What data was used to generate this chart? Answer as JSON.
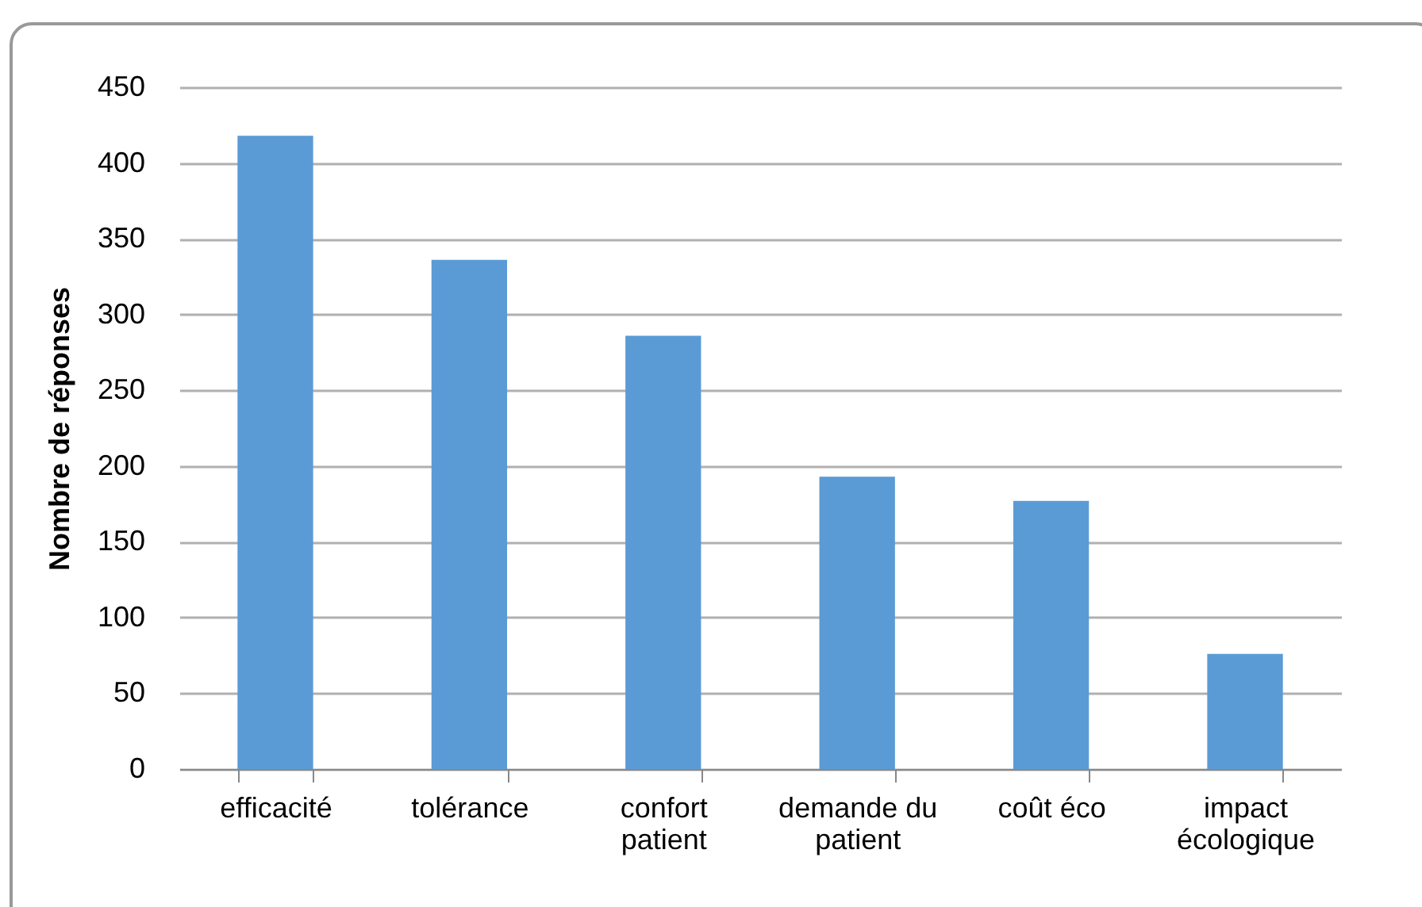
{
  "chart_data": {
    "type": "bar",
    "ylabel": "Nombre de réponses",
    "categories": [
      "efficacité",
      "tolérance",
      "confort patient",
      "demande du patient",
      "coût éco",
      "impact écologique"
    ],
    "values": [
      418,
      336,
      286,
      193,
      177,
      76
    ],
    "color": "#5b9bd5",
    "ylim": [
      0,
      450
    ],
    "yticks": [
      0,
      50,
      100,
      150,
      200,
      250,
      300,
      350,
      400,
      450
    ],
    "grid": "y"
  }
}
